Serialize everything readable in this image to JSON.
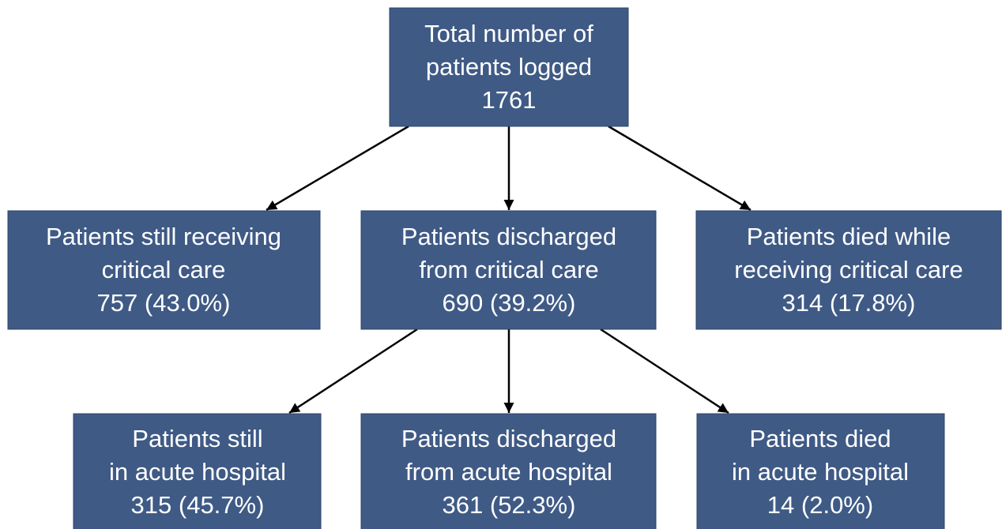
{
  "nodes": [
    {
      "lines": [
        "Total number of",
        "patients logged",
        "1761"
      ]
    },
    {
      "lines": [
        "Patients still receiving",
        "critical care",
        "757 (43.0%)"
      ]
    },
    {
      "lines": [
        "Patients discharged",
        "from critical care",
        "690 (39.2%)"
      ]
    },
    {
      "lines": [
        "Patients died while",
        "receiving critical care",
        "314 (17.8%)"
      ]
    },
    {
      "lines": [
        "Patients still",
        "in acute hospital",
        "315 (45.7%)"
      ]
    },
    {
      "lines": [
        "Patients discharged",
        "from acute hospital",
        "361 (52.3%)"
      ]
    },
    {
      "lines": [
        "Patients died",
        "in acute hospital",
        "14 (2.0%)"
      ]
    }
  ]
}
